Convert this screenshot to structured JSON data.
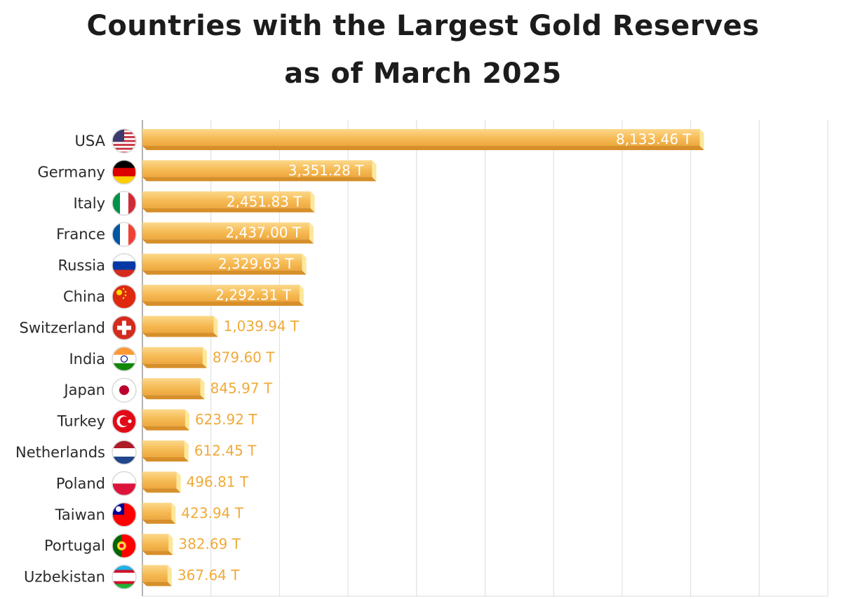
{
  "title": {
    "line1": "Countries with the Largest Gold Reserves",
    "line2": "as of March 2025"
  },
  "colors": {
    "bar_top": "#fbd27a",
    "bar_mid": "#f6bb55",
    "bar_bottom": "#d68f2a",
    "bar_cap": "#fde79a",
    "value_outside": "#f0aa3a",
    "value_inside": "#ffffff",
    "grid": "#dcdcdc",
    "axis": "#9a9a9a"
  },
  "chart_data": {
    "type": "bar",
    "orientation": "horizontal",
    "title": "Countries with the Largest Gold Reserves as of March 2025",
    "xlabel": "",
    "ylabel": "",
    "xlim": [
      0,
      10000
    ],
    "grid": true,
    "unit_suffix": " T",
    "categories": [
      "USA",
      "Germany",
      "Italy",
      "France",
      "Russia",
      "China",
      "Switzerland",
      "India",
      "Japan",
      "Turkey",
      "Netherlands",
      "Poland",
      "Taiwan",
      "Portugal",
      "Uzbekistan"
    ],
    "values": [
      8133.46,
      3351.28,
      2451.83,
      2437.0,
      2329.63,
      2292.31,
      1039.94,
      879.6,
      845.97,
      623.92,
      612.45,
      496.81,
      423.94,
      382.69,
      367.64
    ],
    "value_labels": [
      "8,133.46 T",
      "3,351.28 T",
      "2,451.83 T",
      "2,437.00 T",
      "2,329.63 T",
      "2,292.31 T",
      "1,039.94 T",
      "879.60 T",
      "845.97 T",
      "623.92 T",
      "612.45 T",
      "496.81 T",
      "423.94 T",
      "382.69 T",
      "367.64 T"
    ],
    "flags": [
      "usa-flag",
      "germany-flag",
      "italy-flag",
      "france-flag",
      "russia-flag",
      "china-flag",
      "switzerland-flag",
      "india-flag",
      "japan-flag",
      "turkey-flag",
      "netherlands-flag",
      "poland-flag",
      "taiwan-flag",
      "portugal-flag",
      "uzbekistan-flag"
    ]
  }
}
